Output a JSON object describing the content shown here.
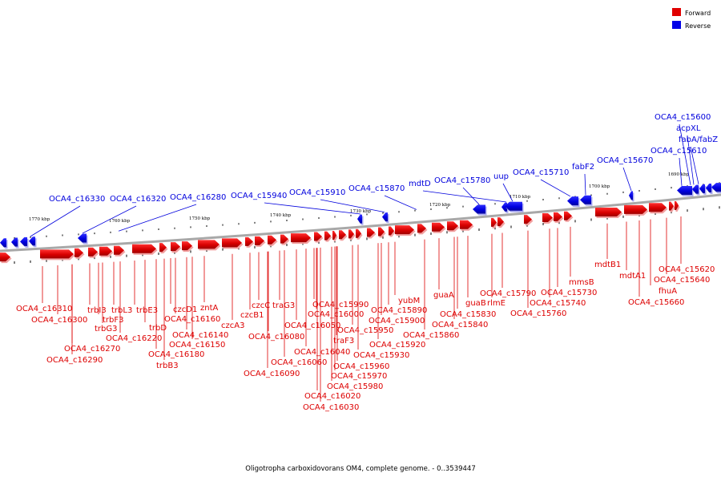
{
  "legend": {
    "forward_label": "Forward",
    "reverse_label": "Reverse",
    "forward_color": "#e00000",
    "reverse_color": "#0000e8"
  },
  "caption": "Oligotropha carboxidovorans OM4, complete genome. - 0..3539447",
  "scale_labels": [
    "1770 kbp",
    "1760 kbp",
    "1750 kbp",
    "1740 kbp",
    "1730 kbp",
    "1720 kbp",
    "1710 kbp",
    "1700 kbp",
    "1690 kbp"
  ],
  "reverse_genes": [
    "OCA4_c15600",
    "acpXL",
    "fabA/fabZ",
    "OCA4_c15610",
    "OCA4_c15670",
    "fabF2",
    "OCA4_c15710",
    "uup",
    "OCA4_c15780",
    "mdtD",
    "OCA4_c15870",
    "OCA4_c15910",
    "OCA4_c15940",
    "OCA4_c16280",
    "OCA4_c16320",
    "OCA4_c16330"
  ],
  "forward_genes": [
    "OCA4_c16310",
    "OCA4_c16300",
    "OCA4_c16270",
    "OCA4_c16290",
    "trbI3",
    "trbF3",
    "trbG3",
    "trbL3",
    "OCA4_c16220",
    "trbE3",
    "trbD",
    "OCA4_c16180",
    "trbB3",
    "czcD1",
    "OCA4_c16160",
    "OCA4_c16140",
    "OCA4_c16150",
    "zntA",
    "czcA3",
    "czcB1",
    "czcC",
    "traG3",
    "OCA4_c16080",
    "OCA4_c16090",
    "OCA4_c16050",
    "OCA4_c15990",
    "OCA4_c16000",
    "OCA4_c16060",
    "OCA4_c16040",
    "traF3",
    "OCA4_c16020",
    "OCA4_c16030",
    "OCA4_c15980",
    "OCA4_c15970",
    "OCA4_c15960",
    "OCA4_c15950",
    "OCA4_c15930",
    "OCA4_c15920",
    "OCA4_c15900",
    "OCA4_c15890",
    "yubM",
    "OCA4_c15860",
    "guaA",
    "OCA4_c15840",
    "OCA4_c15830",
    "guaB",
    "rlmE",
    "OCA4_c15790",
    "OCA4_c15760",
    "OCA4_c15740",
    "OCA4_c15730",
    "mmsB",
    "mdtB1",
    "mdtA1",
    "fhuA",
    "OCA4_c15660",
    "OCA4_c15640",
    "OCA4_c15620"
  ]
}
